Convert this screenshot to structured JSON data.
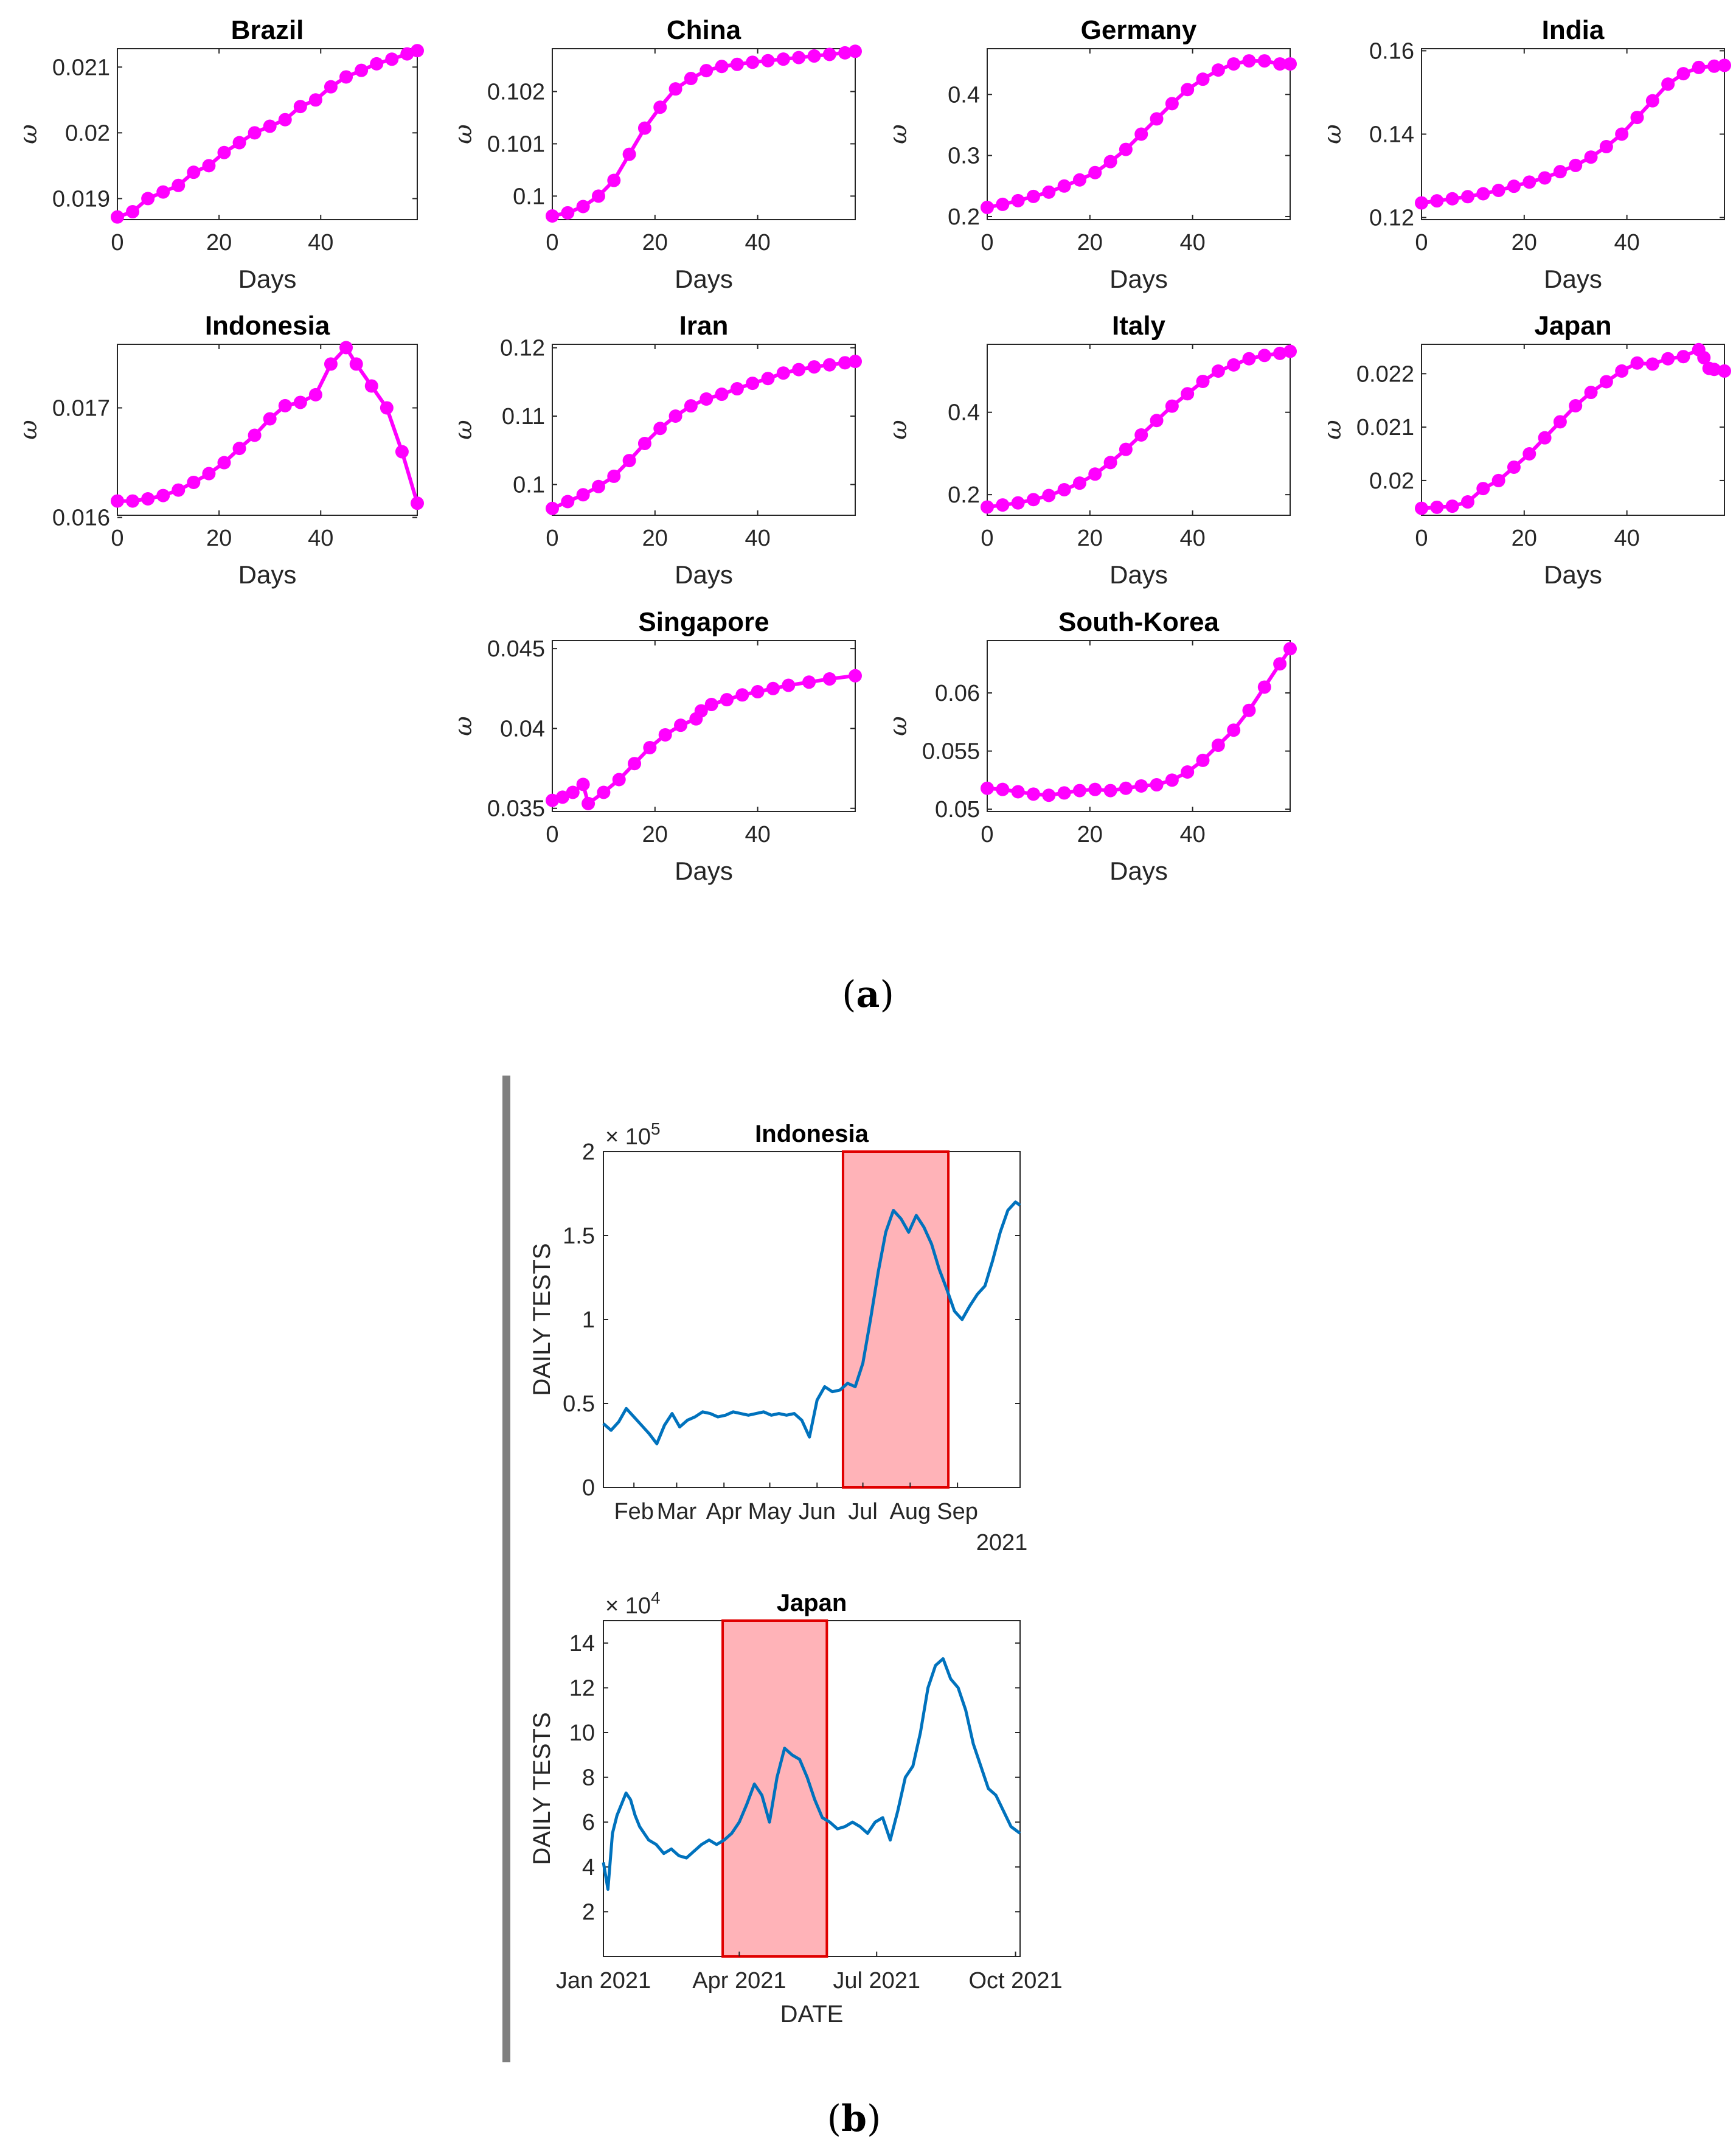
{
  "figure": {
    "caption_a": "(a)",
    "caption_a_letter": "a",
    "caption_b": "(b)",
    "caption_b_letter": "b"
  },
  "colors": {
    "omega_series": "#ff00ff",
    "daily_tests_series": "#0072bd",
    "highlight_fill": "#ffb3b8",
    "highlight_edge": "#e00000",
    "divider": "#7f7f7f"
  },
  "chart_data": [
    {
      "id": "brazil",
      "type": "scatter",
      "title": "Brazil",
      "xlabel": "Days",
      "ylabel": "ω",
      "xlim": [
        0,
        59
      ],
      "ylim": [
        0.01868,
        0.02128
      ],
      "xticks": [
        0,
        20,
        40
      ],
      "xtick_labels": [
        "0",
        "20",
        "40"
      ],
      "yticks": [
        0.019,
        0.02,
        0.021
      ],
      "ytick_labels": [
        "0.019",
        "0.02",
        "0.021"
      ],
      "x": [
        0,
        3,
        6,
        9,
        12,
        15,
        18,
        21,
        24,
        27,
        30,
        33,
        36,
        39,
        42,
        45,
        48,
        51,
        54,
        57,
        59
      ],
      "y": [
        0.01872,
        0.0188,
        0.019,
        0.0191,
        0.0192,
        0.0194,
        0.0195,
        0.0197,
        0.01985,
        0.02,
        0.0201,
        0.0202,
        0.0204,
        0.0205,
        0.0207,
        0.02085,
        0.02095,
        0.02105,
        0.02112,
        0.0212,
        0.02125
      ]
    },
    {
      "id": "china",
      "type": "scatter",
      "title": "China",
      "xlabel": "Days",
      "ylabel": "ω",
      "xlim": [
        0,
        59
      ],
      "ylim": [
        0.09955,
        0.10282
      ],
      "xticks": [
        0,
        20,
        40
      ],
      "xtick_labels": [
        "0",
        "20",
        "40"
      ],
      "yticks": [
        0.1,
        0.101,
        0.102
      ],
      "ytick_labels": [
        "0.1",
        "0.101",
        "0.102"
      ],
      "x": [
        0,
        3,
        6,
        9,
        12,
        15,
        18,
        21,
        24,
        27,
        30,
        33,
        36,
        39,
        42,
        45,
        48,
        51,
        54,
        57,
        59
      ],
      "y": [
        0.09962,
        0.09968,
        0.0998,
        0.1,
        0.1003,
        0.1008,
        0.1013,
        0.1017,
        0.10205,
        0.10225,
        0.1024,
        0.10248,
        0.10252,
        0.10256,
        0.10259,
        0.10262,
        0.10265,
        0.10268,
        0.10271,
        0.10274,
        0.10277
      ]
    },
    {
      "id": "germany",
      "type": "scatter",
      "title": "Germany",
      "xlabel": "Days",
      "ylabel": "ω",
      "xlim": [
        0,
        59
      ],
      "ylim": [
        0.195,
        0.475
      ],
      "xticks": [
        0,
        20,
        40
      ],
      "xtick_labels": [
        "0",
        "20",
        "40"
      ],
      "yticks": [
        0.2,
        0.3,
        0.4
      ],
      "ytick_labels": [
        "0.2",
        "0.3",
        "0.4"
      ],
      "x": [
        0,
        3,
        6,
        9,
        12,
        15,
        18,
        21,
        24,
        27,
        30,
        33,
        36,
        39,
        42,
        45,
        48,
        51,
        54,
        57,
        59
      ],
      "y": [
        0.215,
        0.22,
        0.226,
        0.233,
        0.24,
        0.25,
        0.26,
        0.272,
        0.29,
        0.31,
        0.335,
        0.36,
        0.385,
        0.408,
        0.425,
        0.44,
        0.45,
        0.455,
        0.455,
        0.45,
        0.45
      ]
    },
    {
      "id": "india",
      "type": "scatter",
      "title": "India",
      "xlabel": "Days",
      "ylabel": "ω",
      "xlim": [
        0,
        59
      ],
      "ylim": [
        0.1195,
        0.1605
      ],
      "xticks": [
        0,
        20,
        40
      ],
      "xtick_labels": [
        "0",
        "20",
        "40"
      ],
      "yticks": [
        0.12,
        0.14,
        0.16
      ],
      "ytick_labels": [
        "0.12",
        "0.14",
        "0.16"
      ],
      "x": [
        0,
        3,
        6,
        9,
        12,
        15,
        18,
        21,
        24,
        27,
        30,
        33,
        36,
        39,
        42,
        45,
        48,
        51,
        54,
        57,
        59
      ],
      "y": [
        0.1235,
        0.124,
        0.1245,
        0.125,
        0.1257,
        0.1265,
        0.1275,
        0.1285,
        0.1295,
        0.131,
        0.1325,
        0.1345,
        0.137,
        0.14,
        0.144,
        0.148,
        0.152,
        0.1545,
        0.156,
        0.1563,
        0.1565
      ]
    },
    {
      "id": "indonesia_omega",
      "type": "scatter",
      "title": "Indonesia",
      "xlabel": "Days",
      "ylabel": "ω",
      "xlim": [
        0,
        59
      ],
      "ylim": [
        0.01602,
        0.01758
      ],
      "xticks": [
        0,
        20,
        40
      ],
      "xtick_labels": [
        "0",
        "20",
        "40"
      ],
      "yticks": [
        0.016,
        0.017
      ],
      "ytick_labels": [
        "0.016",
        "0.017"
      ],
      "x": [
        0,
        3,
        6,
        9,
        12,
        15,
        18,
        21,
        24,
        27,
        30,
        33,
        36,
        39,
        42,
        45,
        47,
        50,
        53,
        56,
        59
      ],
      "y": [
        0.01615,
        0.01615,
        0.01617,
        0.0162,
        0.01625,
        0.01632,
        0.0164,
        0.0165,
        0.01663,
        0.01675,
        0.0169,
        0.01702,
        0.01705,
        0.01712,
        0.0174,
        0.01755,
        0.0174,
        0.0172,
        0.017,
        0.0166,
        0.01613
      ]
    },
    {
      "id": "iran",
      "type": "scatter",
      "title": "Iran",
      "xlabel": "Days",
      "ylabel": "ω",
      "xlim": [
        0,
        59
      ],
      "ylim": [
        0.0955,
        0.1205
      ],
      "xticks": [
        0,
        20,
        40
      ],
      "xtick_labels": [
        "0",
        "20",
        "40"
      ],
      "yticks": [
        0.1,
        0.11,
        0.12
      ],
      "ytick_labels": [
        "0.1",
        "0.11",
        "0.12"
      ],
      "x": [
        0,
        3,
        6,
        9,
        12,
        15,
        18,
        21,
        24,
        27,
        30,
        33,
        36,
        39,
        42,
        45,
        48,
        51,
        54,
        57,
        59
      ],
      "y": [
        0.0965,
        0.0975,
        0.0985,
        0.0997,
        0.1012,
        0.1035,
        0.106,
        0.1082,
        0.11,
        0.1115,
        0.1125,
        0.1132,
        0.114,
        0.1148,
        0.1155,
        0.1163,
        0.1168,
        0.1172,
        0.1175,
        0.1178,
        0.118
      ]
    },
    {
      "id": "italy",
      "type": "scatter",
      "title": "Italy",
      "xlabel": "Days",
      "ylabel": "ω",
      "xlim": [
        0,
        59
      ],
      "ylim": [
        0.15,
        0.565
      ],
      "xticks": [
        0,
        20,
        40
      ],
      "xtick_labels": [
        "0",
        "20",
        "40"
      ],
      "yticks": [
        0.2,
        0.4
      ],
      "ytick_labels": [
        "0.2",
        "0.4"
      ],
      "x": [
        0,
        3,
        6,
        9,
        12,
        15,
        18,
        21,
        24,
        27,
        30,
        33,
        36,
        39,
        42,
        45,
        48,
        51,
        54,
        57,
        59
      ],
      "y": [
        0.17,
        0.175,
        0.18,
        0.188,
        0.198,
        0.212,
        0.228,
        0.25,
        0.278,
        0.31,
        0.345,
        0.38,
        0.415,
        0.445,
        0.475,
        0.5,
        0.515,
        0.53,
        0.538,
        0.543,
        0.548
      ]
    },
    {
      "id": "japan_omega",
      "type": "scatter",
      "title": "Japan",
      "xlabel": "Days",
      "ylabel": "ω",
      "xlim": [
        0,
        59
      ],
      "ylim": [
        0.01935,
        0.02255
      ],
      "xticks": [
        0,
        20,
        40
      ],
      "xtick_labels": [
        "0",
        "20",
        "40"
      ],
      "yticks": [
        0.02,
        0.021,
        0.022
      ],
      "ytick_labels": [
        "0.02",
        "0.021",
        "0.022"
      ],
      "x": [
        0,
        3,
        6,
        9,
        12,
        15,
        18,
        21,
        24,
        27,
        30,
        33,
        36,
        39,
        42,
        45,
        48,
        51,
        54,
        55,
        56,
        57,
        59
      ],
      "y": [
        0.01948,
        0.0195,
        0.01952,
        0.0196,
        0.01985,
        0.02,
        0.02025,
        0.0205,
        0.0208,
        0.0211,
        0.0214,
        0.02165,
        0.02185,
        0.02205,
        0.0222,
        0.02218,
        0.02228,
        0.02232,
        0.02245,
        0.0223,
        0.0221,
        0.02208,
        0.02205
      ]
    },
    {
      "id": "singapore",
      "type": "scatter",
      "title": "Singapore",
      "xlabel": "Days",
      "ylabel": "ω",
      "xlim": [
        0,
        59
      ],
      "ylim": [
        0.0348,
        0.0455
      ],
      "xticks": [
        0,
        20,
        40
      ],
      "xtick_labels": [
        "0",
        "20",
        "40"
      ],
      "yticks": [
        0.035,
        0.04,
        0.045
      ],
      "ytick_labels": [
        "0.035",
        "0.04",
        "0.045"
      ],
      "x": [
        0,
        2,
        4,
        6,
        7,
        10,
        13,
        16,
        19,
        22,
        25,
        28,
        29,
        31,
        34,
        37,
        40,
        43,
        46,
        50,
        54,
        59
      ],
      "y": [
        0.0355,
        0.0357,
        0.036,
        0.0365,
        0.0353,
        0.036,
        0.0368,
        0.0378,
        0.0388,
        0.0396,
        0.0402,
        0.0406,
        0.0411,
        0.0415,
        0.0418,
        0.0421,
        0.0423,
        0.0425,
        0.0427,
        0.0429,
        0.0431,
        0.0433
      ]
    },
    {
      "id": "south_korea",
      "type": "scatter",
      "title": "South-Korea",
      "xlabel": "Days",
      "ylabel": "ω",
      "xlim": [
        0,
        59
      ],
      "ylim": [
        0.0498,
        0.0645
      ],
      "xticks": [
        0,
        20,
        40
      ],
      "xtick_labels": [
        "0",
        "20",
        "40"
      ],
      "yticks": [
        0.05,
        0.055,
        0.06
      ],
      "ytick_labels": [
        "0.05",
        "0.055",
        "0.06"
      ],
      "x": [
        0,
        3,
        6,
        9,
        12,
        15,
        18,
        21,
        24,
        27,
        30,
        33,
        36,
        39,
        42,
        45,
        48,
        51,
        54,
        57,
        59
      ],
      "y": [
        0.0518,
        0.0517,
        0.0515,
        0.0513,
        0.0512,
        0.0514,
        0.0516,
        0.0517,
        0.0516,
        0.0518,
        0.052,
        0.0521,
        0.0525,
        0.0532,
        0.0542,
        0.0555,
        0.0568,
        0.0585,
        0.0605,
        0.0625,
        0.0638
      ]
    },
    {
      "id": "indonesia_tests",
      "type": "line",
      "title": "Indonesia",
      "xlabel": "",
      "ylabel": "DAILY TESTS",
      "ylim": [
        0,
        200000
      ],
      "xlim_days": [
        0,
        273
      ],
      "exponent_label": "× 10",
      "exponent": "5",
      "yticks": [
        0,
        50000,
        100000,
        150000,
        200000
      ],
      "ytick_labels": [
        "0",
        "0.5",
        "1",
        "1.5",
        "2"
      ],
      "xticks_days": [
        20,
        48,
        79,
        109,
        140,
        170,
        201,
        232
      ],
      "xtick_labels": [
        "Feb",
        "Mar",
        "Apr",
        "May",
        "Jun",
        "Jul",
        "Aug",
        "Sep"
      ],
      "year_label": "2021",
      "highlight_days": [
        157,
        226
      ],
      "x_days": [
        0,
        5,
        10,
        15,
        20,
        25,
        30,
        35,
        40,
        45,
        50,
        55,
        60,
        65,
        70,
        75,
        80,
        85,
        90,
        95,
        100,
        105,
        110,
        115,
        120,
        125,
        130,
        135,
        140,
        145,
        150,
        155,
        160,
        165,
        170,
        175,
        180,
        185,
        190,
        195,
        200,
        205,
        210,
        215,
        220,
        225,
        230,
        235,
        240,
        245,
        250,
        255,
        260,
        265,
        270,
        273
      ],
      "y": [
        38000,
        34000,
        39000,
        47000,
        42000,
        37000,
        32000,
        26000,
        37000,
        44000,
        36000,
        40000,
        42000,
        45000,
        44000,
        42000,
        43000,
        45000,
        44000,
        43000,
        44000,
        45000,
        43000,
        44000,
        43000,
        44000,
        40000,
        30000,
        52000,
        60000,
        57000,
        58000,
        62000,
        60000,
        74000,
        100000,
        128000,
        152000,
        165000,
        160000,
        152000,
        162000,
        155000,
        145000,
        130000,
        118000,
        105000,
        100000,
        108000,
        115000,
        120000,
        135000,
        152000,
        165000,
        170000,
        168000
      ]
    },
    {
      "id": "japan_tests",
      "type": "line",
      "title": "Japan",
      "xlabel": "DATE",
      "ylabel": "DAILY TESTS",
      "ylim": [
        0,
        150000
      ],
      "xlim_days": [
        0,
        276
      ],
      "exponent_label": "× 10",
      "exponent": "4",
      "yticks": [
        20000,
        40000,
        60000,
        80000,
        100000,
        120000,
        140000
      ],
      "ytick_labels": [
        "2",
        "4",
        "6",
        "8",
        "10",
        "12",
        "14"
      ],
      "xticks_days": [
        0,
        90,
        181,
        273
      ],
      "xtick_labels": [
        "Jan 2021",
        "Apr 2021",
        "Jul 2021",
        "Oct 2021"
      ],
      "highlight_days": [
        79,
        148
      ],
      "x_days": [
        0,
        3,
        6,
        9,
        12,
        15,
        18,
        21,
        24,
        27,
        30,
        35,
        40,
        45,
        50,
        55,
        60,
        65,
        70,
        75,
        80,
        85,
        90,
        95,
        100,
        105,
        110,
        115,
        120,
        125,
        130,
        135,
        140,
        145,
        150,
        155,
        160,
        165,
        170,
        175,
        180,
        185,
        190,
        195,
        200,
        205,
        210,
        215,
        220,
        225,
        230,
        235,
        240,
        245,
        250,
        255,
        260,
        265,
        270,
        276
      ],
      "y": [
        42000,
        30000,
        55000,
        63000,
        68000,
        73000,
        70000,
        63000,
        58000,
        55000,
        52000,
        50000,
        46000,
        48000,
        45000,
        44000,
        47000,
        50000,
        52000,
        50000,
        52000,
        55000,
        60000,
        68000,
        77000,
        72000,
        60000,
        80000,
        93000,
        90000,
        88000,
        80000,
        70000,
        62000,
        60000,
        57000,
        58000,
        60000,
        58000,
        55000,
        60000,
        62000,
        52000,
        65000,
        80000,
        85000,
        100000,
        120000,
        130000,
        133000,
        124000,
        120000,
        110000,
        95000,
        85000,
        75000,
        72000,
        65000,
        58000,
        55000
      ]
    }
  ]
}
